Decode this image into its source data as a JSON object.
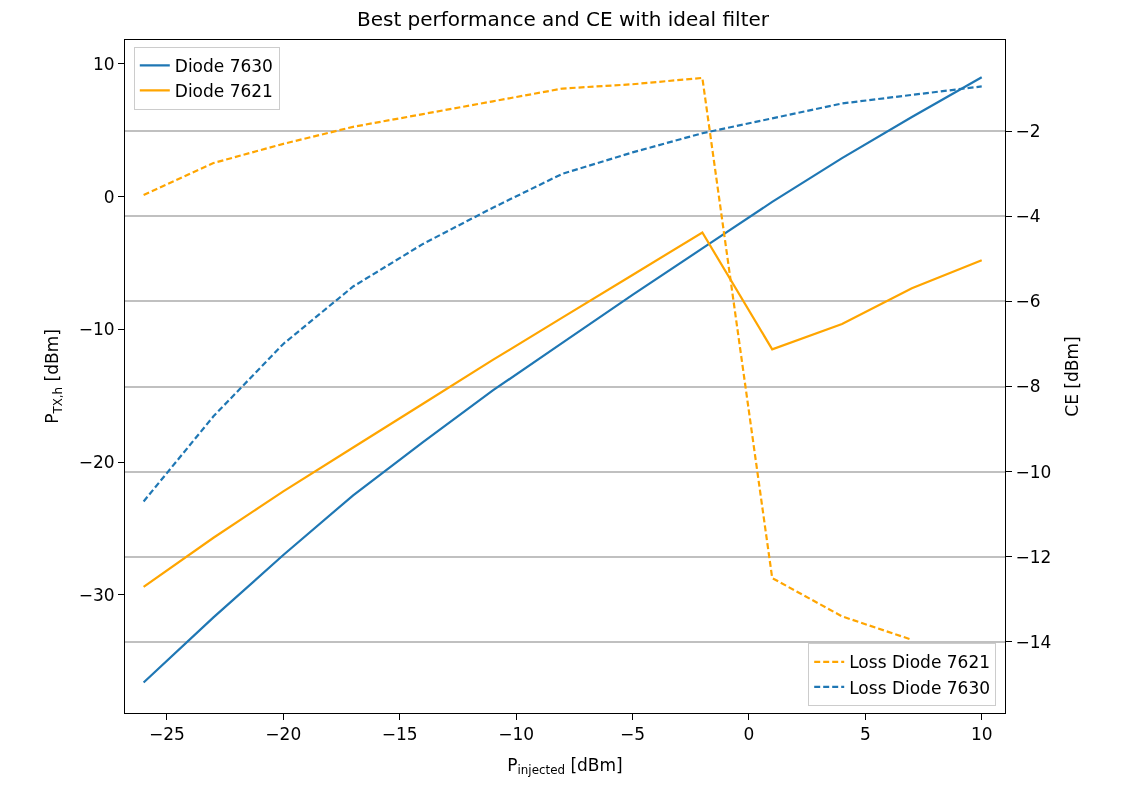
{
  "chart_data": {
    "type": "line",
    "title": "Best performance and CE with ideal filter",
    "xlabel": "P$_{injected}$ [dBm]",
    "ylabel": "P$_{TX,h}$ [dBm]",
    "y2label": "CE [dBm]",
    "x": [
      -26,
      -23,
      -20,
      -17,
      -14,
      -11,
      -8,
      -5,
      -2,
      1,
      4,
      7,
      10
    ],
    "series": [
      {
        "name": "Diode 7630",
        "color": "#1f77b4",
        "line_style": "solid",
        "values": [
          -36.6,
          -31.7,
          -27.0,
          -22.5,
          -18.5,
          -14.6,
          -11.0,
          -7.4,
          -3.9,
          -0.4,
          2.9,
          6.0,
          9.0
        ]
      },
      {
        "name": "Diode 7621",
        "color": "#ffa500",
        "line_style": "solid",
        "values": [
          -29.4,
          -25.7,
          -22.2,
          -18.9,
          -15.6,
          -12.3,
          -9.1,
          -5.9,
          -2.7,
          -11.5,
          -9.6,
          -6.9,
          -4.8
        ]
      },
      {
        "name": "Loss Diode 7621",
        "color": "#ffa500",
        "line_style": "dashed",
        "axis": "y2",
        "values": [
          -3.5,
          -2.75,
          -2.3,
          -1.9,
          -1.6,
          -1.3,
          -1.0,
          -0.9,
          -0.75,
          -12.5,
          -13.4,
          -13.95,
          null
        ]
      },
      {
        "name": "Loss Diode 7630",
        "color": "#1f77b4",
        "line_style": "dashed",
        "axis": "y2",
        "values": [
          -10.7,
          -8.7,
          -7.0,
          -5.65,
          -4.65,
          -3.8,
          -3.0,
          -2.5,
          -2.05,
          -1.7,
          -1.35,
          -1.15,
          -0.95
        ]
      }
    ],
    "xlim": [
      -26.8,
      11.0
    ],
    "xticks": [
      -25,
      -20,
      -15,
      -10,
      -5,
      0,
      5,
      10
    ],
    "ylim": [
      -38.9,
      11.8
    ],
    "yticks": [
      -30,
      -20,
      -10,
      0,
      10
    ],
    "y2lim": [
      -15.67,
      0.14
    ],
    "y2ticks": [
      -14,
      -12,
      -10,
      -8,
      -6,
      -4,
      -2
    ],
    "grid": "y2",
    "legend": [
      "top left",
      "bottom right"
    ],
    "marker": "none"
  }
}
